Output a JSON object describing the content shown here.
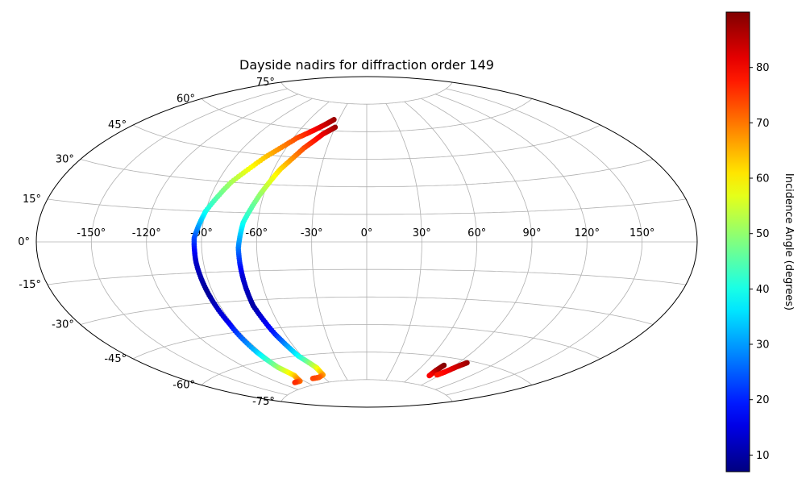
{
  "chart_data": {
    "type": "scatter",
    "projection": "aitoff",
    "title": "Dayside nadirs for diffraction order 149",
    "xlabel": "",
    "ylabel": "",
    "longitude_ticks": [
      "-150°",
      "-120°",
      "-90°",
      "-60°",
      "-30°",
      "0°",
      "30°",
      "60°",
      "90°",
      "120°",
      "150°"
    ],
    "latitude_ticks": [
      "75°",
      "60°",
      "45°",
      "30°",
      "15°",
      "0°",
      "-15°",
      "-30°",
      "-45°",
      "-60°",
      "-75°"
    ],
    "grid": true,
    "colormap": "jet",
    "colorbar": {
      "label": "Incidence Angle (degrees)",
      "range": [
        7,
        90
      ],
      "ticks": [
        "10",
        "20",
        "30",
        "40",
        "50",
        "60",
        "70",
        "80"
      ]
    },
    "tracks": [
      {
        "points": [
          {
            "lon": -35,
            "lat": 66,
            "inc": 88
          },
          {
            "lon": -45,
            "lat": 61,
            "inc": 82
          },
          {
            "lon": -57,
            "lat": 55,
            "inc": 74
          },
          {
            "lon": -70,
            "lat": 44,
            "inc": 64
          },
          {
            "lon": -82,
            "lat": 30,
            "inc": 52
          },
          {
            "lon": -90,
            "lat": 15,
            "inc": 40
          },
          {
            "lon": -94,
            "lat": 2,
            "inc": 24
          },
          {
            "lon": -94,
            "lat": -10,
            "inc": 13
          },
          {
            "lon": -93,
            "lat": -25,
            "inc": 9
          },
          {
            "lon": -92,
            "lat": -40,
            "inc": 16
          },
          {
            "lon": -93,
            "lat": -55,
            "inc": 33
          },
          {
            "lon": -93,
            "lat": -64,
            "inc": 50
          },
          {
            "lon": -90,
            "lat": -69,
            "inc": 62
          },
          {
            "lon": -95,
            "lat": -72,
            "inc": 70
          },
          {
            "lon": -104,
            "lat": -72,
            "inc": 76
          }
        ]
      },
      {
        "points": [
          {
            "lon": -30,
            "lat": 62,
            "inc": 88
          },
          {
            "lon": -38,
            "lat": 58,
            "inc": 82
          },
          {
            "lon": -47,
            "lat": 50,
            "inc": 74
          },
          {
            "lon": -56,
            "lat": 38,
            "inc": 62
          },
          {
            "lon": -62,
            "lat": 25,
            "inc": 51
          },
          {
            "lon": -68,
            "lat": 10,
            "inc": 40
          },
          {
            "lon": -70,
            "lat": -3,
            "inc": 28
          },
          {
            "lon": -70,
            "lat": -18,
            "inc": 14
          },
          {
            "lon": -70,
            "lat": -33,
            "inc": 10
          },
          {
            "lon": -67,
            "lat": -48,
            "inc": 20
          },
          {
            "lon": -63,
            "lat": -60,
            "inc": 38
          },
          {
            "lon": -56,
            "lat": -67,
            "inc": 56
          },
          {
            "lon": -57,
            "lat": -71,
            "inc": 66
          },
          {
            "lon": -66,
            "lat": -72,
            "inc": 72
          },
          {
            "lon": -75,
            "lat": -72,
            "inc": 74
          }
        ]
      },
      {
        "points": [
          {
            "lon": 80,
            "lat": -64,
            "inc": 90
          },
          {
            "lon": 79,
            "lat": -67,
            "inc": 87
          },
          {
            "lon": 80,
            "lat": -70,
            "inc": 80
          }
        ]
      },
      {
        "points": [
          {
            "lon": 97,
            "lat": -61,
            "inc": 88
          },
          {
            "lon": 93,
            "lat": -64,
            "inc": 84
          },
          {
            "lon": 90,
            "lat": -67,
            "inc": 80
          },
          {
            "lon": 87,
            "lat": -69,
            "inc": 78
          }
        ]
      }
    ]
  }
}
